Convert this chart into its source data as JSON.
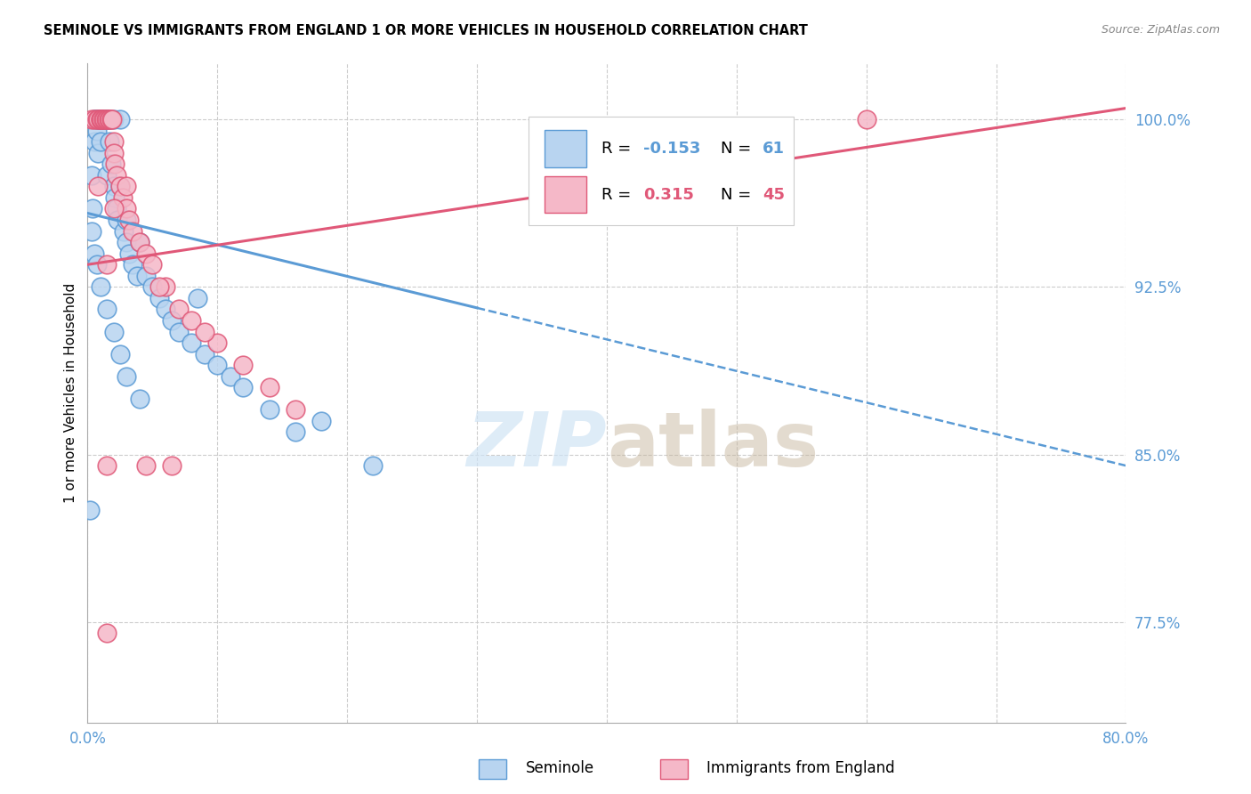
{
  "title": "SEMINOLE VS IMMIGRANTS FROM ENGLAND 1 OR MORE VEHICLES IN HOUSEHOLD CORRELATION CHART",
  "source": "Source: ZipAtlas.com",
  "ylabel": "1 or more Vehicles in Household",
  "ytick_values": [
    77.5,
    85.0,
    92.5,
    100.0
  ],
  "xmin": 0.0,
  "xmax": 80.0,
  "ymin": 73.0,
  "ymax": 102.5,
  "legend_label1": "Seminole",
  "legend_label2": "Immigrants from England",
  "r1": -0.153,
  "n1": 61,
  "r2": 0.315,
  "n2": 45,
  "color_seminole_fill": "#b8d4f0",
  "color_seminole_edge": "#5b9bd5",
  "color_england_fill": "#f5b8c8",
  "color_england_edge": "#e05878",
  "color_blue_text": "#5b9bd5",
  "color_pink_text": "#e05878",
  "watermark_color": "#d0e4f5",
  "seminole_x": [
    0.2,
    0.3,
    0.4,
    0.5,
    0.5,
    0.6,
    0.7,
    0.7,
    0.8,
    0.8,
    0.9,
    1.0,
    1.0,
    1.1,
    1.2,
    1.3,
    1.4,
    1.5,
    1.5,
    1.6,
    1.7,
    1.8,
    2.0,
    2.0,
    2.1,
    2.2,
    2.3,
    2.5,
    2.5,
    2.8,
    3.0,
    3.0,
    3.2,
    3.5,
    3.8,
    4.0,
    4.5,
    5.0,
    5.5,
    6.0,
    6.5,
    7.0,
    8.0,
    8.5,
    9.0,
    10.0,
    11.0,
    12.0,
    14.0,
    16.0,
    18.0,
    22.0,
    0.3,
    0.5,
    0.7,
    1.0,
    1.5,
    2.0,
    2.5,
    3.0,
    4.0
  ],
  "seminole_y": [
    82.5,
    97.5,
    96.0,
    100.0,
    99.0,
    100.0,
    100.0,
    99.5,
    100.0,
    98.5,
    100.0,
    100.0,
    99.0,
    100.0,
    100.0,
    100.0,
    100.0,
    100.0,
    97.5,
    100.0,
    99.0,
    98.0,
    100.0,
    97.0,
    96.5,
    96.0,
    95.5,
    100.0,
    97.0,
    95.0,
    95.5,
    94.5,
    94.0,
    93.5,
    93.0,
    94.5,
    93.0,
    92.5,
    92.0,
    91.5,
    91.0,
    90.5,
    90.0,
    92.0,
    89.5,
    89.0,
    88.5,
    88.0,
    87.0,
    86.0,
    86.5,
    84.5,
    95.0,
    94.0,
    93.5,
    92.5,
    91.5,
    90.5,
    89.5,
    88.5,
    87.5
  ],
  "england_x": [
    0.3,
    0.5,
    0.7,
    0.8,
    1.0,
    1.0,
    1.1,
    1.2,
    1.3,
    1.4,
    1.5,
    1.6,
    1.7,
    1.8,
    1.9,
    2.0,
    2.0,
    2.1,
    2.2,
    2.5,
    2.7,
    3.0,
    3.2,
    3.5,
    4.0,
    4.5,
    5.0,
    6.0,
    7.0,
    8.0,
    10.0,
    12.0,
    14.0,
    16.0,
    60.0,
    0.8,
    1.5,
    2.0,
    3.0,
    4.5,
    5.5,
    6.5,
    9.0,
    1.5,
    1.5
  ],
  "england_y": [
    100.0,
    100.0,
    100.0,
    100.0,
    100.0,
    100.0,
    100.0,
    100.0,
    100.0,
    100.0,
    100.0,
    100.0,
    100.0,
    100.0,
    100.0,
    99.0,
    98.5,
    98.0,
    97.5,
    97.0,
    96.5,
    96.0,
    95.5,
    95.0,
    94.5,
    94.0,
    93.5,
    92.5,
    91.5,
    91.0,
    90.0,
    89.0,
    88.0,
    87.0,
    100.0,
    97.0,
    93.5,
    96.0,
    97.0,
    84.5,
    92.5,
    84.5,
    90.5,
    84.5,
    77.0
  ],
  "blue_line_x0": 0.0,
  "blue_line_y0": 95.8,
  "blue_line_x1": 80.0,
  "blue_line_y1": 84.5,
  "blue_solid_end": 30.0,
  "pink_line_x0": 0.0,
  "pink_line_y0": 93.5,
  "pink_line_x1": 80.0,
  "pink_line_y1": 100.5
}
